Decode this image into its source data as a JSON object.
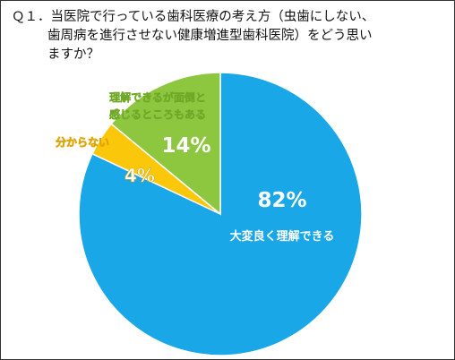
{
  "question": {
    "line1": "Ｑ１．当医院で行っている歯科医療の考え方（虫歯にしない、",
    "line2": "歯周病を進行させない健康増進型歯科医院）をどう思い",
    "line3": "ますか？"
  },
  "chart_data": {
    "type": "pie",
    "title": "Ｑ１．当医院で行っている歯科医療の考え方（虫歯にしない、歯周病を進行させない健康増進型歯科医院）をどう思いますか？",
    "start_angle_deg": 0,
    "direction": "clockwise",
    "slices": [
      {
        "label": "大変良く理解できる",
        "value": 82,
        "value_label": "82%",
        "color": "#1aa7e8",
        "value_color": "#ffffff",
        "label_color": "#ffffff"
      },
      {
        "label": "分からない",
        "value": 4,
        "value_label": "4%",
        "color": "#fbc70a",
        "value_color": "#ffffff",
        "label_color": "#ffffff"
      },
      {
        "label_lines": [
          "理解できるが面倒と",
          "感じるところもある"
        ],
        "value": 14,
        "value_label": "14%",
        "color": "#8dc63f",
        "value_color": "#ffffff",
        "label_color": "#ffffff"
      }
    ]
  }
}
